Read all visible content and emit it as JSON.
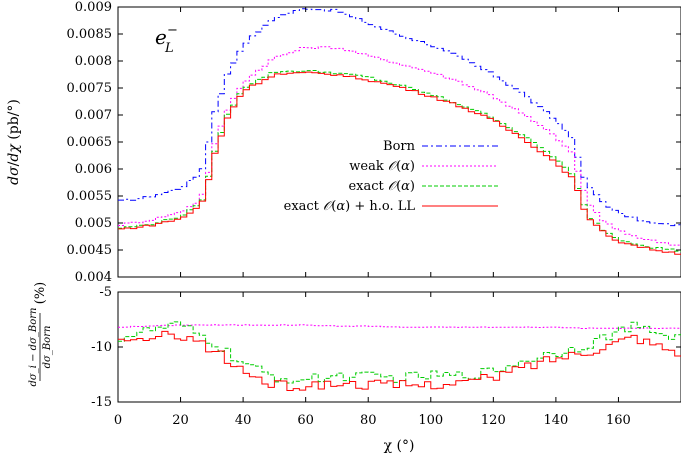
{
  "chart_data": [
    {
      "type": "line",
      "panel": "top",
      "annotation": "e_L^-",
      "ylabel": "dσ/dχ (pb/°)",
      "xlim": [
        0,
        180
      ],
      "ylim": [
        0.004,
        0.009
      ],
      "yticks": [
        "0.004",
        "0.0045",
        "0.005",
        "0.0055",
        "0.006",
        "0.0065",
        "0.007",
        "0.0075",
        "0.008",
        "0.0085",
        "0.009"
      ],
      "yticks_values": [
        0.004,
        0.0045,
        0.005,
        0.0055,
        0.006,
        0.0065,
        0.007,
        0.0075,
        0.008,
        0.0085,
        0.009
      ],
      "legend_position": "center-right",
      "x": [
        0,
        10,
        20,
        25,
        28,
        30,
        35,
        40,
        50,
        60,
        70,
        80,
        90,
        100,
        110,
        120,
        130,
        140,
        145,
        148,
        150,
        155,
        160,
        170,
        180
      ],
      "series": [
        {
          "name": "Born",
          "color": "#0000ff",
          "dash": "6,3,2,3",
          "values": [
            0.0054,
            0.00548,
            0.00565,
            0.00585,
            0.0061,
            0.0069,
            0.00775,
            0.0083,
            0.0088,
            0.00898,
            0.00893,
            0.0087,
            0.00848,
            0.0083,
            0.00805,
            0.00775,
            0.00738,
            0.0069,
            0.0066,
            0.006,
            0.0057,
            0.0054,
            0.00518,
            0.005,
            0.00495
          ]
        },
        {
          "name": "weak",
          "name_math": "O(α)",
          "color": "#ff00ff",
          "dash": "2,2",
          "values": [
            0.00496,
            0.00505,
            0.0052,
            0.00538,
            0.0056,
            0.0063,
            0.0071,
            0.0076,
            0.00806,
            0.00825,
            0.00825,
            0.0081,
            0.00795,
            0.0078,
            0.0076,
            0.00735,
            0.007,
            0.0066,
            0.0063,
            0.0058,
            0.0054,
            0.00505,
            0.00485,
            0.00468,
            0.00458
          ]
        },
        {
          "name": "exact",
          "name_math": "O(α)",
          "color": "#00cc00",
          "dash": "4,2",
          "values": [
            0.0049,
            0.00497,
            0.00512,
            0.0053,
            0.00552,
            0.00618,
            0.007,
            0.0075,
            0.0078,
            0.00782,
            0.00778,
            0.0077,
            0.00755,
            0.00738,
            0.00718,
            0.00695,
            0.0066,
            0.0062,
            0.0059,
            0.0055,
            0.00515,
            0.00488,
            0.0047,
            0.00456,
            0.00448
          ]
        },
        {
          "name": "exact",
          "name_math": "O(α)",
          "name_suffix": "+ h.o. LL",
          "color": "#ff0000",
          "dash": "",
          "values": [
            0.00488,
            0.00495,
            0.00508,
            0.00526,
            0.00548,
            0.00612,
            0.00695,
            0.00745,
            0.00775,
            0.00778,
            0.00775,
            0.00765,
            0.00752,
            0.00735,
            0.00715,
            0.0069,
            0.00655,
            0.00612,
            0.00585,
            0.00545,
            0.0051,
            0.00484,
            0.00466,
            0.00452,
            0.00443
          ]
        }
      ]
    },
    {
      "type": "line",
      "panel": "bottom",
      "ylabel_num": "dσ_i − dσ_Born",
      "ylabel_den": "dσ_Born",
      "ylabel_unit": "(%)",
      "xlabel": "χ (°)",
      "xlim": [
        0,
        180
      ],
      "ylim": [
        -15,
        -5
      ],
      "xticks": [
        "0",
        "20",
        "40",
        "60",
        "80",
        "100",
        "120",
        "140",
        "160"
      ],
      "xticks_values": [
        0,
        20,
        40,
        60,
        80,
        100,
        120,
        140,
        160
      ],
      "yticks": [
        "-5",
        "-10",
        "-15"
      ],
      "yticks_values": [
        -5,
        -10,
        -15
      ],
      "x": [
        0,
        10,
        20,
        25,
        30,
        35,
        40,
        50,
        60,
        70,
        80,
        90,
        100,
        110,
        120,
        130,
        140,
        150,
        160,
        165,
        170,
        180
      ],
      "series": [
        {
          "name": "weak",
          "color": "#ff00ff",
          "dash": "2,2",
          "values": [
            -8.2,
            -8.1,
            -8.0,
            -8.0,
            -8.0,
            -8.0,
            -8.0,
            -8.0,
            -8.0,
            -8.1,
            -8.1,
            -8.2,
            -8.2,
            -8.2,
            -8.2,
            -8.2,
            -8.2,
            -8.3,
            -8.3,
            -8.3,
            -8.3,
            -8.3
          ]
        },
        {
          "name": "exact",
          "color": "#00cc00",
          "dash": "4,2",
          "values": [
            -9.2,
            -8.5,
            -8.0,
            -8.8,
            -9.5,
            -10.5,
            -11.5,
            -12.8,
            -13.0,
            -12.6,
            -12.7,
            -12.8,
            -12.6,
            -12.6,
            -12.2,
            -11.2,
            -10.5,
            -9.8,
            -8.6,
            -8.2,
            -8.5,
            -9.2
          ]
        },
        {
          "name": "exact + h.o. LL",
          "color": "#ff0000",
          "dash": "",
          "values": [
            -9.8,
            -9.2,
            -8.8,
            -9.5,
            -10.2,
            -11.2,
            -12.2,
            -13.5,
            -13.6,
            -13.3,
            -13.4,
            -13.5,
            -13.4,
            -13.2,
            -12.8,
            -11.8,
            -11.0,
            -10.4,
            -9.5,
            -9.0,
            -9.6,
            -10.5
          ]
        }
      ]
    }
  ]
}
